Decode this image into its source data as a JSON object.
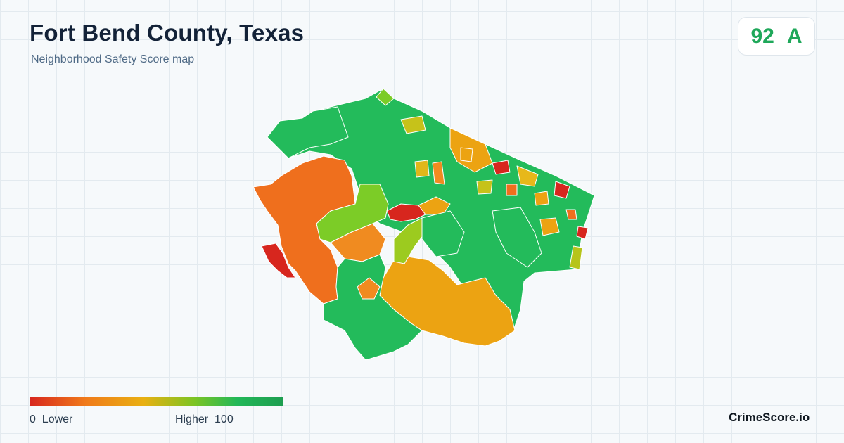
{
  "header": {
    "title": "Fort Bend County, Texas",
    "subtitle": "Neighborhood Safety Score map"
  },
  "score": {
    "value": "92",
    "grade": "A",
    "color": "#1fa85a"
  },
  "legend": {
    "min_label": "0  Lower",
    "max_label": "Higher  100",
    "gradient_colors": [
      "#d7261e",
      "#f07a1a",
      "#e9b012",
      "#7cc423",
      "#22b858",
      "#1e9e50"
    ]
  },
  "brand": {
    "name": "CrimeScore.io"
  },
  "map": {
    "color_scale": {
      "red": "#d7261e",
      "orange": "#ef6f1d",
      "amber": "#eca312",
      "yellow_green": "#9ccb1f",
      "light_green": "#7ccc27",
      "green": "#23bb5b"
    }
  }
}
